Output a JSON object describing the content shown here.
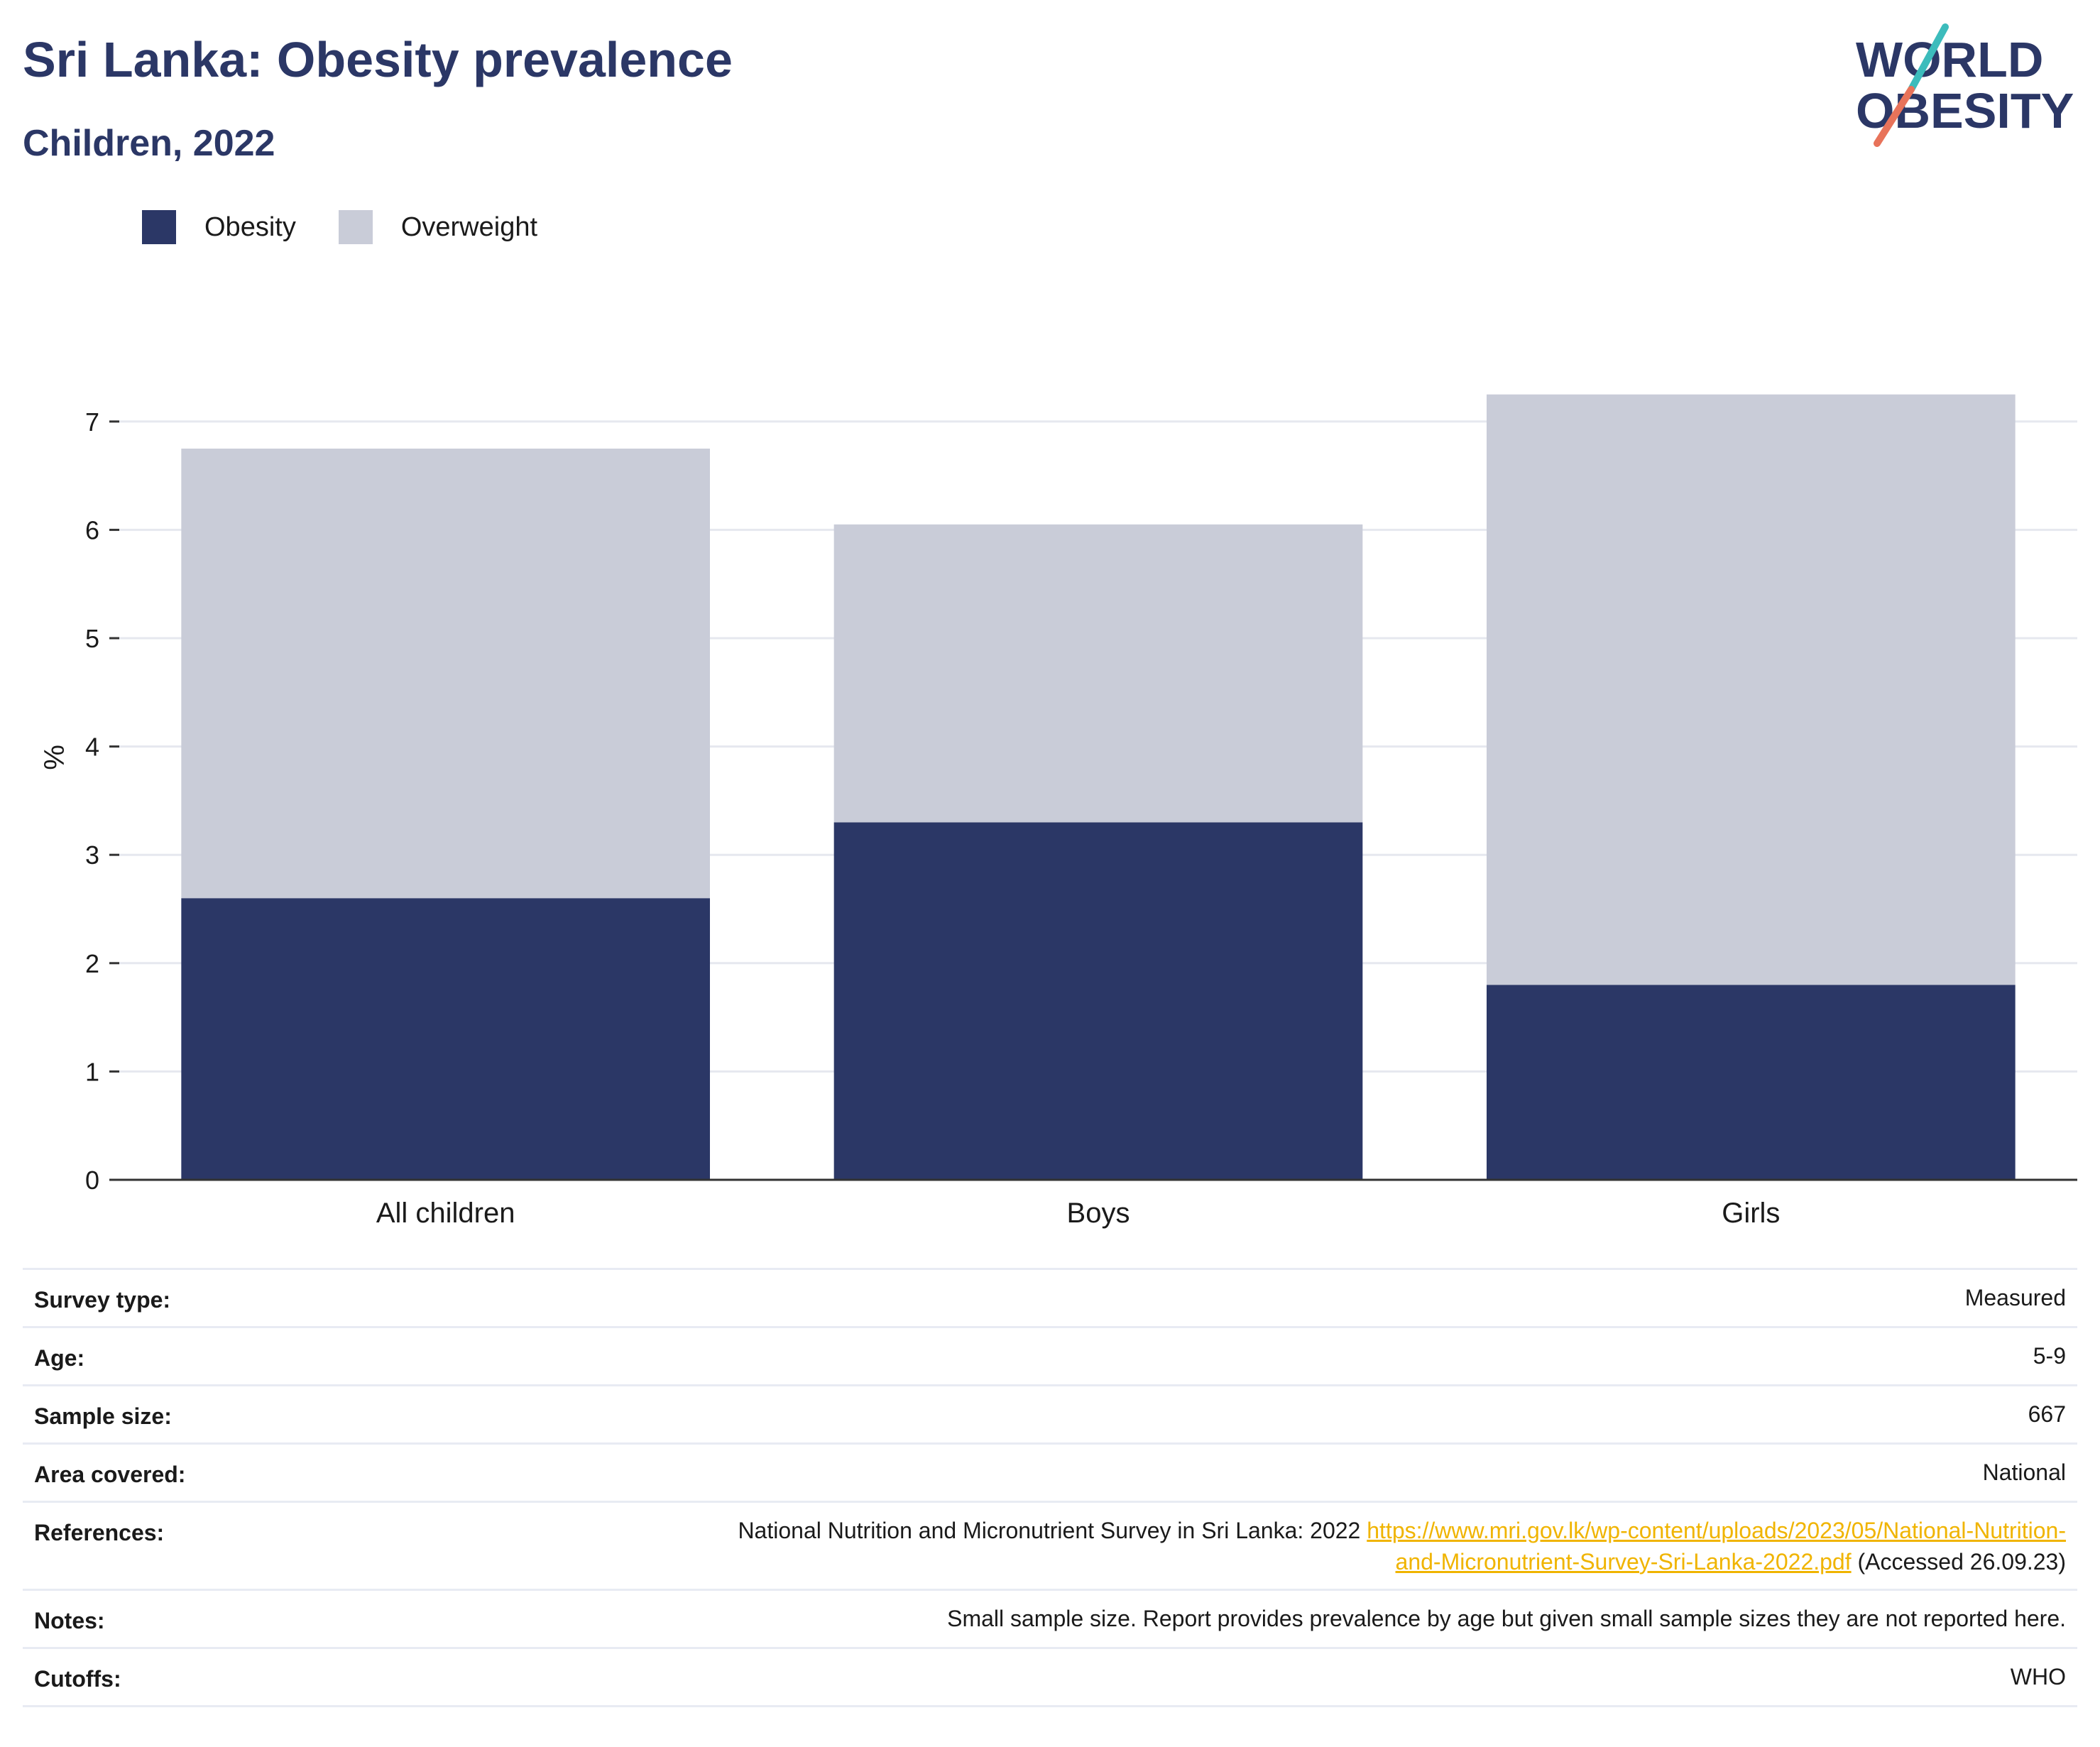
{
  "header": {
    "title": "Sri Lanka: Obesity prevalence",
    "subtitle": "Children, 2022",
    "logo_line1": "WORLD",
    "logo_line2": "OBESITY"
  },
  "colors": {
    "obesity": "#2b3766",
    "overweight": "#c9ccd8",
    "title": "#2b3766",
    "link": "#f0b400",
    "logo_teal": "#3cbcbc",
    "logo_coral": "#e8735a"
  },
  "chart_data": {
    "type": "bar",
    "stacked": true,
    "categories": [
      "All children",
      "Boys",
      "Girls"
    ],
    "series": [
      {
        "name": "Obesity",
        "values": [
          2.6,
          3.3,
          1.8
        ]
      },
      {
        "name": "Overweight",
        "values": [
          4.15,
          2.75,
          5.45
        ]
      }
    ],
    "ylabel": "%",
    "ylim": [
      0,
      7.4
    ],
    "yticks": [
      0,
      1,
      2,
      3,
      4,
      5,
      6,
      7
    ],
    "grid": true,
    "legend_position": "top-left"
  },
  "info": {
    "survey_type": {
      "label": "Survey type:",
      "value": "Measured"
    },
    "age": {
      "label": "Age:",
      "value": "5-9"
    },
    "sample_size": {
      "label": "Sample size:",
      "value": "667"
    },
    "area": {
      "label": "Area covered:",
      "value": "National"
    },
    "references": {
      "label": "References:",
      "text": "National Nutrition and Micronutrient Survey in Sri Lanka: 2022",
      "link_line1": "https://www.mri.gov.lk/wp-content/uploads/2023/05/National-Nutrition-",
      "link_line2": "and-Micronutrient-Survey-Sri-Lanka-2022.pdf",
      "accessed": "(Accessed 26.09.23)"
    },
    "notes": {
      "label": "Notes:",
      "value": "Small sample size. Report provides prevalence by age but given small sample sizes they are not reported here."
    },
    "cutoffs": {
      "label": "Cutoffs:",
      "value": "WHO"
    }
  }
}
